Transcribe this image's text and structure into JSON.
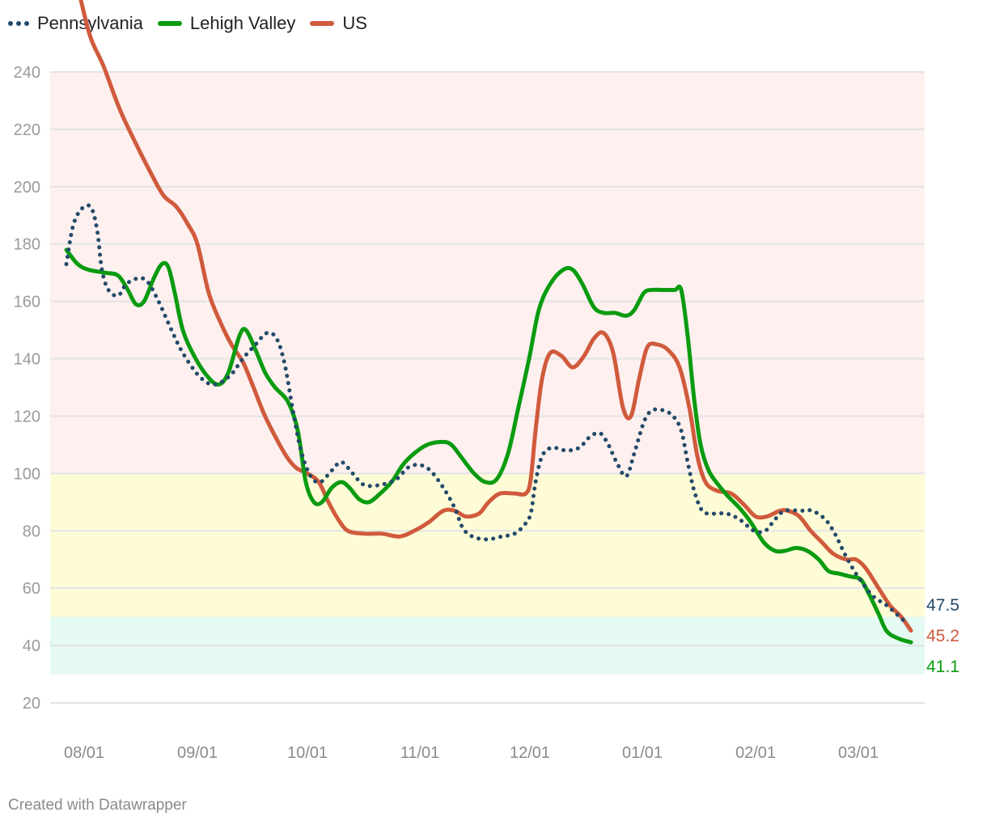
{
  "legend": [
    {
      "label": "Pennsylvania",
      "color": "#234a6a",
      "style": "dotted"
    },
    {
      "label": "Lehigh Valley",
      "color": "#0a9b10",
      "style": "solid"
    },
    {
      "label": "US",
      "color": "#d05a3c",
      "style": "solid"
    }
  ],
  "footer": "Created with Datawrapper",
  "chart_data": {
    "type": "line",
    "title": "",
    "xlabel": "",
    "ylabel": "",
    "ylim": [
      20,
      240
    ],
    "yticks": [
      20,
      40,
      60,
      80,
      100,
      120,
      140,
      160,
      180,
      200,
      220,
      240
    ],
    "xticks": [
      "08/01",
      "09/01",
      "10/01",
      "11/01",
      "12/01",
      "01/01",
      "02/01",
      "03/01"
    ],
    "grid": true,
    "legend_position": "top-left",
    "bands": [
      {
        "from": 100,
        "to": 240,
        "color": "#fdf0ef"
      },
      {
        "from": 50,
        "to": 100,
        "color": "#fefcd7"
      },
      {
        "from": 30,
        "to": 50,
        "color": "#e4faf3"
      }
    ],
    "end_labels": [
      {
        "series": "Pennsylvania",
        "value": "47.5",
        "color": "#234a6a"
      },
      {
        "series": "US",
        "value": "45.2",
        "color": "#d05a3c"
      },
      {
        "series": "Lehigh Valley",
        "value": "41.1",
        "color": "#0a9b10"
      }
    ],
    "series": [
      {
        "name": "Pennsylvania",
        "color": "#234a6a",
        "style": "dotted",
        "points": [
          [
            82,
            173
          ],
          [
            90,
            186
          ],
          [
            100,
            192
          ],
          [
            112,
            193
          ],
          [
            120,
            185
          ],
          [
            126,
            171
          ],
          [
            134,
            164
          ],
          [
            146,
            162
          ],
          [
            156,
            166
          ],
          [
            170,
            168
          ],
          [
            182,
            167
          ],
          [
            196,
            160
          ],
          [
            212,
            150
          ],
          [
            226,
            142
          ],
          [
            246,
            134
          ],
          [
            264,
            131
          ],
          [
            284,
            134
          ],
          [
            300,
            140
          ],
          [
            316,
            145
          ],
          [
            330,
            149
          ],
          [
            342,
            147
          ],
          [
            352,
            138
          ],
          [
            362,
            122
          ],
          [
            372,
            108
          ],
          [
            384,
            99
          ],
          [
            396,
            97
          ],
          [
            410,
            101
          ],
          [
            422,
            104
          ],
          [
            436,
            100
          ],
          [
            450,
            96
          ],
          [
            470,
            96
          ],
          [
            490,
            98
          ],
          [
            504,
            102
          ],
          [
            518,
            103
          ],
          [
            532,
            101
          ],
          [
            548,
            95
          ],
          [
            562,
            88
          ],
          [
            572,
            81
          ],
          [
            584,
            78
          ],
          [
            602,
            77
          ],
          [
            620,
            78
          ],
          [
            636,
            79
          ],
          [
            648,
            82
          ],
          [
            656,
            86
          ],
          [
            662,
            97
          ],
          [
            670,
            106
          ],
          [
            682,
            109
          ],
          [
            700,
            108
          ],
          [
            716,
            109
          ],
          [
            730,
            113
          ],
          [
            742,
            114
          ],
          [
            752,
            110
          ],
          [
            762,
            104
          ],
          [
            774,
            99
          ],
          [
            784,
            107
          ],
          [
            796,
            118
          ],
          [
            806,
            122
          ],
          [
            820,
            122
          ],
          [
            832,
            120
          ],
          [
            842,
            115
          ],
          [
            850,
            104
          ],
          [
            858,
            94
          ],
          [
            868,
            87
          ],
          [
            880,
            86
          ],
          [
            898,
            86
          ],
          [
            914,
            84
          ],
          [
            932,
            80
          ],
          [
            946,
            80
          ],
          [
            958,
            84
          ],
          [
            970,
            87
          ],
          [
            990,
            87
          ],
          [
            1004,
            87
          ],
          [
            1020,
            84
          ],
          [
            1032,
            79
          ],
          [
            1044,
            72
          ],
          [
            1056,
            66
          ],
          [
            1068,
            61
          ],
          [
            1080,
            57
          ],
          [
            1096,
            54
          ],
          [
            1108,
            51
          ],
          [
            1122,
            47.5
          ]
        ]
      },
      {
        "name": "Lehigh Valley",
        "color": "#0a9b10",
        "style": "solid",
        "points": [
          [
            82,
            178
          ],
          [
            96,
            173
          ],
          [
            110,
            171
          ],
          [
            130,
            170
          ],
          [
            146,
            169
          ],
          [
            158,
            164
          ],
          [
            168,
            159
          ],
          [
            178,
            160
          ],
          [
            190,
            168
          ],
          [
            200,
            173
          ],
          [
            208,
            172
          ],
          [
            216,
            163
          ],
          [
            226,
            150
          ],
          [
            240,
            141
          ],
          [
            256,
            134
          ],
          [
            270,
            131
          ],
          [
            282,
            135
          ],
          [
            296,
            148
          ],
          [
            304,
            150
          ],
          [
            316,
            143
          ],
          [
            328,
            135
          ],
          [
            340,
            130
          ],
          [
            356,
            125
          ],
          [
            368,
            115
          ],
          [
            378,
            97
          ],
          [
            388,
            90
          ],
          [
            398,
            90
          ],
          [
            410,
            95
          ],
          [
            422,
            97
          ],
          [
            432,
            95
          ],
          [
            444,
            91
          ],
          [
            456,
            90
          ],
          [
            470,
            93
          ],
          [
            484,
            97
          ],
          [
            498,
            103
          ],
          [
            512,
            107
          ],
          [
            528,
            110
          ],
          [
            546,
            111
          ],
          [
            558,
            110
          ],
          [
            572,
            105
          ],
          [
            586,
            100
          ],
          [
            600,
            97
          ],
          [
            614,
            98
          ],
          [
            628,
            107
          ],
          [
            640,
            122
          ],
          [
            654,
            140
          ],
          [
            666,
            157
          ],
          [
            680,
            166
          ],
          [
            696,
            171
          ],
          [
            708,
            171
          ],
          [
            720,
            166
          ],
          [
            734,
            158
          ],
          [
            746,
            156
          ],
          [
            760,
            156
          ],
          [
            774,
            155
          ],
          [
            784,
            157
          ],
          [
            796,
            163
          ],
          [
            806,
            164
          ],
          [
            820,
            164
          ],
          [
            834,
            164
          ],
          [
            842,
            164
          ],
          [
            850,
            148
          ],
          [
            858,
            126
          ],
          [
            866,
            110
          ],
          [
            876,
            101
          ],
          [
            888,
            96
          ],
          [
            900,
            92
          ],
          [
            914,
            88
          ],
          [
            928,
            83
          ],
          [
            944,
            76
          ],
          [
            958,
            73
          ],
          [
            970,
            73
          ],
          [
            984,
            74
          ],
          [
            998,
            73
          ],
          [
            1012,
            70
          ],
          [
            1024,
            66
          ],
          [
            1038,
            65
          ],
          [
            1052,
            64
          ],
          [
            1064,
            63
          ],
          [
            1074,
            58
          ],
          [
            1086,
            51
          ],
          [
            1096,
            45
          ],
          [
            1110,
            42.5
          ],
          [
            1126,
            41.1
          ]
        ]
      },
      {
        "name": "US",
        "color": "#d05a3c",
        "style": "solid",
        "points": [
          [
            100,
            265
          ],
          [
            112,
            252
          ],
          [
            128,
            242
          ],
          [
            148,
            227
          ],
          [
            168,
            215
          ],
          [
            186,
            205
          ],
          [
            202,
            197
          ],
          [
            218,
            193
          ],
          [
            232,
            187
          ],
          [
            244,
            180
          ],
          [
            258,
            163
          ],
          [
            272,
            153
          ],
          [
            286,
            145
          ],
          [
            300,
            139
          ],
          [
            312,
            131
          ],
          [
            326,
            121
          ],
          [
            340,
            113
          ],
          [
            354,
            106
          ],
          [
            366,
            102
          ],
          [
            380,
            100
          ],
          [
            394,
            97
          ],
          [
            406,
            90
          ],
          [
            418,
            84
          ],
          [
            430,
            80
          ],
          [
            450,
            79
          ],
          [
            472,
            79
          ],
          [
            494,
            78
          ],
          [
            512,
            80
          ],
          [
            530,
            83
          ],
          [
            548,
            87
          ],
          [
            562,
            87
          ],
          [
            576,
            85
          ],
          [
            592,
            86
          ],
          [
            604,
            90
          ],
          [
            618,
            93
          ],
          [
            636,
            93
          ],
          [
            650,
            93
          ],
          [
            656,
            98
          ],
          [
            662,
            115
          ],
          [
            670,
            133
          ],
          [
            680,
            142
          ],
          [
            694,
            141
          ],
          [
            708,
            137
          ],
          [
            722,
            141
          ],
          [
            734,
            147
          ],
          [
            746,
            149
          ],
          [
            758,
            142
          ],
          [
            770,
            123
          ],
          [
            780,
            120
          ],
          [
            790,
            133
          ],
          [
            800,
            144
          ],
          [
            812,
            145
          ],
          [
            826,
            143
          ],
          [
            840,
            137
          ],
          [
            852,
            123
          ],
          [
            862,
            106
          ],
          [
            872,
            97
          ],
          [
            886,
            94
          ],
          [
            904,
            93
          ],
          [
            920,
            89
          ],
          [
            934,
            85
          ],
          [
            948,
            85
          ],
          [
            964,
            87
          ],
          [
            974,
            87
          ],
          [
            988,
            85
          ],
          [
            1002,
            80
          ],
          [
            1016,
            76
          ],
          [
            1030,
            72
          ],
          [
            1046,
            70
          ],
          [
            1058,
            70
          ],
          [
            1070,
            67
          ],
          [
            1086,
            60
          ],
          [
            1100,
            54
          ],
          [
            1114,
            50
          ],
          [
            1126,
            45.2
          ]
        ]
      }
    ]
  }
}
